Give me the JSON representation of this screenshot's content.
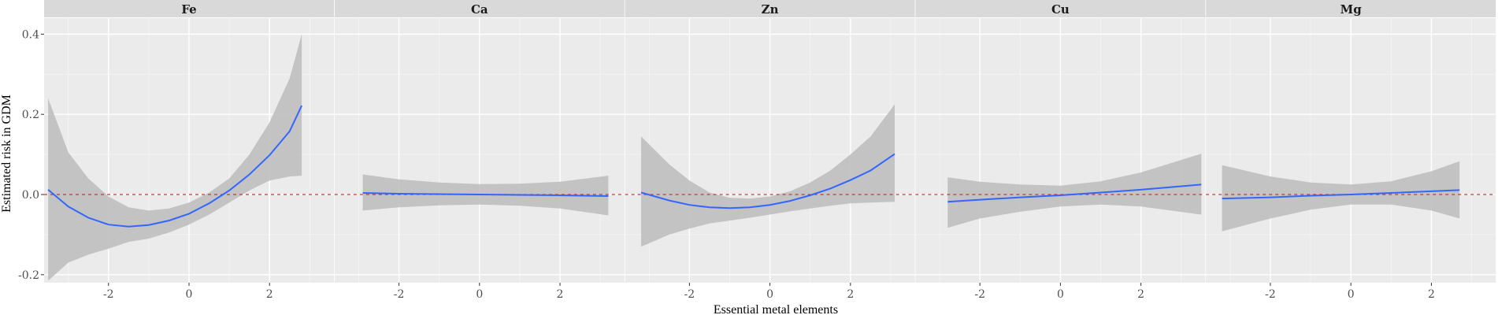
{
  "chart_data": {
    "type": "line",
    "xlabel": "Essential metal elements",
    "ylabel": "Estimated risk in GDM",
    "ylim": [
      -0.22,
      0.44
    ],
    "y_ticks": [
      -0.2,
      0.0,
      0.2,
      0.4
    ],
    "y_tick_labels": [
      "-0.2",
      "0.0",
      "0.2",
      "0.4"
    ],
    "x_ticks": [
      -2,
      0,
      2
    ],
    "x_tick_labels": [
      "-2",
      "0",
      "2"
    ],
    "xlim": [
      -3.6,
      3.6
    ],
    "reference_line": {
      "y": 0,
      "color": "#cc3333",
      "style": "dashed"
    },
    "grid": true,
    "colors": {
      "line": "#3366ff",
      "ribbon": "#bfbfbf",
      "panel": "#ebebeb",
      "strip": "#d9d9d9"
    },
    "panels": [
      {
        "name": "Fe",
        "x": [
          -3.5,
          -3,
          -2.5,
          -2,
          -1.5,
          -1,
          -0.5,
          0,
          0.5,
          1,
          1.5,
          2,
          2.5,
          2.8
        ],
        "y": [
          0.012,
          -0.03,
          -0.058,
          -0.075,
          -0.08,
          -0.076,
          -0.065,
          -0.048,
          -0.022,
          0.01,
          0.05,
          0.098,
          0.158,
          0.222
        ],
        "lower": [
          -0.215,
          -0.17,
          -0.15,
          -0.135,
          -0.118,
          -0.11,
          -0.095,
          -0.075,
          -0.05,
          -0.02,
          0.01,
          0.035,
          0.045,
          0.047
        ],
        "upper": [
          0.24,
          0.105,
          0.04,
          -0.005,
          -0.032,
          -0.04,
          -0.035,
          -0.02,
          0.005,
          0.04,
          0.1,
          0.18,
          0.29,
          0.4
        ]
      },
      {
        "name": "Ca",
        "x": [
          -2.9,
          -2,
          -1,
          0,
          1,
          2,
          3.2
        ],
        "y": [
          0.004,
          0.002,
          0.001,
          0.0,
          -0.001,
          -0.002,
          -0.004
        ],
        "lower": [
          -0.04,
          -0.032,
          -0.027,
          -0.025,
          -0.028,
          -0.035,
          -0.052
        ],
        "upper": [
          0.05,
          0.038,
          0.03,
          0.026,
          0.027,
          0.032,
          0.047
        ]
      },
      {
        "name": "Zn",
        "x": [
          -3.2,
          -2.5,
          -2,
          -1.5,
          -1,
          -0.5,
          0,
          0.5,
          1,
          1.5,
          2,
          2.5,
          3.1
        ],
        "y": [
          0.005,
          -0.015,
          -0.026,
          -0.032,
          -0.034,
          -0.032,
          -0.026,
          -0.016,
          -0.002,
          0.015,
          0.036,
          0.06,
          0.101
        ],
        "lower": [
          -0.13,
          -0.1,
          -0.085,
          -0.072,
          -0.065,
          -0.058,
          -0.05,
          -0.042,
          -0.035,
          -0.028,
          -0.022,
          -0.02,
          -0.018
        ],
        "upper": [
          0.145,
          0.075,
          0.035,
          0.005,
          -0.008,
          -0.01,
          -0.005,
          0.008,
          0.03,
          0.06,
          0.1,
          0.145,
          0.225
        ]
      },
      {
        "name": "Cu",
        "x": [
          -2.8,
          -2,
          -1,
          0,
          1,
          2,
          3.5
        ],
        "y": [
          -0.018,
          -0.013,
          -0.007,
          -0.002,
          0.005,
          0.012,
          0.025
        ],
        "lower": [
          -0.083,
          -0.06,
          -0.043,
          -0.03,
          -0.025,
          -0.03,
          -0.05
        ],
        "upper": [
          0.043,
          0.032,
          0.025,
          0.022,
          0.033,
          0.055,
          0.102
        ]
      },
      {
        "name": "Mg",
        "x": [
          -3.2,
          -2,
          -1,
          0,
          1,
          2,
          2.7
        ],
        "y": [
          -0.01,
          -0.007,
          -0.003,
          0.0,
          0.004,
          0.008,
          0.011
        ],
        "lower": [
          -0.092,
          -0.06,
          -0.038,
          -0.025,
          -0.025,
          -0.04,
          -0.06
        ],
        "upper": [
          0.073,
          0.045,
          0.03,
          0.025,
          0.033,
          0.058,
          0.083
        ]
      }
    ]
  }
}
